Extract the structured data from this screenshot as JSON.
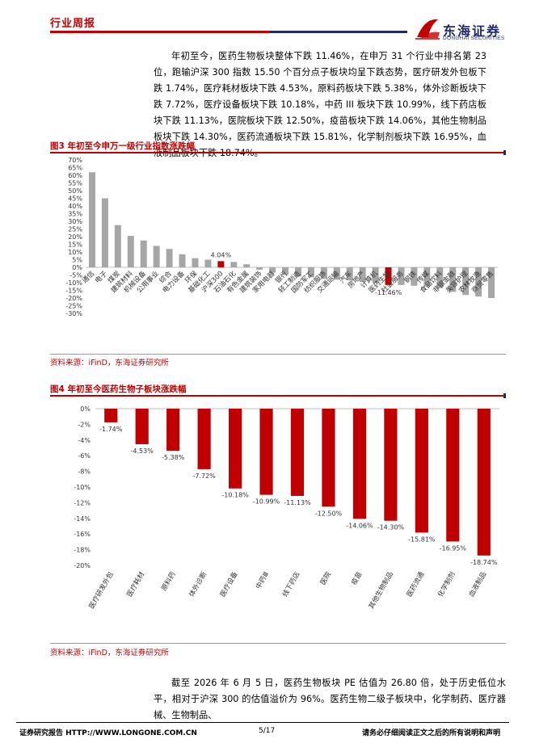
{
  "header": {
    "title": "行业周报",
    "logo_cn": "东海证券",
    "logo_en": "DONGHAI SECURITIES"
  },
  "paragraph1": "年初至今，医药生物板块整体下跌 11.46%，在申万 31 个行业中排名第 23 位，跑输沪深 300 指数 15.50 个百分点子板块均呈下跌态势，医疗研发外包板下跌 1.74%，医疗耗材板块下跌 4.53%，原料药板块下跌 5.38%，体外诊断板块下跌 7.72%，医疗设备板块下跌 10.18%，中药 III 板块下跌 10.99%，线下药店板块下跌 11.13%，医院板块下跌 12.50%，疫苗板块下跌 14.06%，其他生物制品板块下跌 14.30%，医药流通板块下跌 15.81%，化学制剂板块下跌 16.95%，血液制品板块下跌 18.74%。",
  "figure3": {
    "title": "图3  年初至今申万一级行业指数涨跌幅",
    "source": "资料来源：iFinD，东海证券研究所"
  },
  "figure4": {
    "title": "图4  年初至今医药生物子板块涨跌幅",
    "source": "资料来源：iFinD，东海证券研究所"
  },
  "paragraph2": "截至 2026 年 6 月 5 日，医药生物板块 PE 估值为 26.80 倍，处于历史低位水平，相对于沪深 300 的估值溢价为 96%。医药生物二级子板块中，化学制药、医疗器械、生物制品、",
  "footer": {
    "left": "证券研究报告    HTTP://WWW.LONGONE.COM.CN",
    "page": "5/17",
    "right": "请务必仔细阅读正文之后的所有说明和声明"
  },
  "colors": {
    "red": "#c00000",
    "gray_bar": "#a6a6a6",
    "navy": "#1f2a6b"
  },
  "chart_data": [
    {
      "type": "bar",
      "categories": [
        "通信",
        "电子",
        "煤炭",
        "建筑材料",
        "机械设备",
        "公用事业",
        "综合",
        "电力设备",
        "环保",
        "基础化工",
        "沪深300",
        "石油石化",
        "有色金属",
        "建筑装饰",
        "家用电器",
        "银行",
        "轻工制造",
        "国防军工",
        "纺织服饰",
        "交通运输",
        "汽车",
        "房地产",
        "计算机",
        "医药生物",
        "社会服务",
        "钢铁",
        "传媒",
        "食品饮料",
        "非银金融",
        "美容护理",
        "农林牧渔",
        "商贸零售"
      ],
      "values": [
        62,
        45,
        27.5,
        20.5,
        17.5,
        14,
        12,
        8.5,
        6,
        5,
        4.04,
        3.5,
        2,
        -1.5,
        -3.5,
        -5,
        -6,
        -6.5,
        -7.5,
        -8,
        -8.5,
        -9.5,
        -10,
        -11.46,
        -11.5,
        -12,
        -12.5,
        -13.5,
        -16,
        -18,
        -19,
        -20
      ],
      "highlight": [
        "沪深300",
        "医药生物"
      ],
      "data_labels": {
        "沪深300": "4.04%",
        "医药生物": "-11.46%"
      },
      "yticks": [
        "70%",
        "65%",
        "60%",
        "55%",
        "50%",
        "45%",
        "40%",
        "35%",
        "30%",
        "25%",
        "20%",
        "15%",
        "10%",
        "5%",
        "0%",
        "-5%",
        "-10%",
        "-15%",
        "-20%",
        "-25%",
        "-30%"
      ],
      "ylim": [
        -30,
        70
      ]
    },
    {
      "type": "bar",
      "categories": [
        "医疗研发外包",
        "医疗耗材",
        "原料药",
        "体外诊断",
        "医疗设备",
        "中药Ⅲ",
        "线下药店",
        "医院",
        "疫苗",
        "其他生物制品",
        "医药流通",
        "化学制剂",
        "血液制品"
      ],
      "values": [
        -1.74,
        -4.53,
        -5.38,
        -7.72,
        -10.18,
        -10.99,
        -11.13,
        -12.5,
        -14.06,
        -14.3,
        -15.81,
        -16.95,
        -18.74
      ],
      "data_labels": [
        "-1.74%",
        "-4.53%",
        "-5.38%",
        "-7.72%",
        "-10.18%",
        "-10.99%",
        "-11.13%",
        "-12.50%",
        "-14.06%",
        "-14.30%",
        "-15.81%",
        "-16.95%",
        "-18.74%"
      ],
      "yticks": [
        "0%",
        "-2%",
        "-4%",
        "-6%",
        "-8%",
        "-10%",
        "-12%",
        "-14%",
        "-16%",
        "-18%",
        "-20%"
      ],
      "ylim": [
        -20,
        0
      ]
    }
  ]
}
